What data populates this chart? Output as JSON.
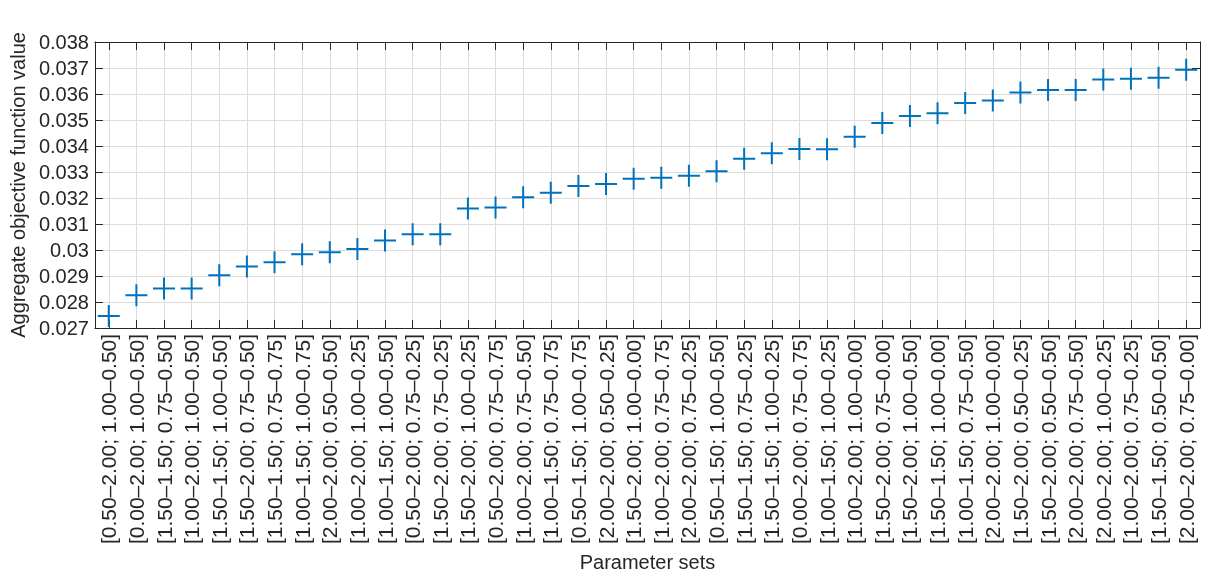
{
  "chart_data": {
    "type": "scatter",
    "xlabel": "Parameter sets",
    "ylabel": "Aggregate objective function value",
    "categories": [
      "[0.50–2.00; 1.00–0.50]",
      "[0.00–2.00; 1.00–0.50]",
      "[1.50–1.50; 0.75–0.50]",
      "[1.00–2.00; 1.00–0.50]",
      "[1.50–1.50; 1.00–0.50]",
      "[1.50–2.00; 0.75–0.50]",
      "[1.50–1.50; 0.75–0.75]",
      "[1.00–1.50; 1.00–0.75]",
      "[2.00–2.00; 0.50–0.50]",
      "[1.00–2.00; 1.00–0.25]",
      "[1.00–1.50; 1.00–0.50]",
      "[0.50–2.00; 0.75–0.25]",
      "[1.50–2.00; 0.75–0.25]",
      "[1.50–2.00; 1.00–0.25]",
      "[0.50–2.00; 0.75–0.75]",
      "[1.00–2.00; 0.75–0.50]",
      "[1.00–1.50; 0.75–0.75]",
      "[0.50–1.50; 1.00–0.75]",
      "[2.00–2.00; 0.50–0.25]",
      "[1.50–2.00; 1.00–0.00]",
      "[1.00–2.00; 0.75–0.75]",
      "[2.00–2.00; 0.75–0.25]",
      "[0.50–1.50; 1.00–0.50]",
      "[1.50–1.50; 0.75–0.25]",
      "[1.50–1.50; 1.00–0.25]",
      "[0.00–2.00; 0.75–0.75]",
      "[1.00–1.50; 1.00–0.25]",
      "[1.00–2.00; 1.00–0.00]",
      "[1.50–2.00; 0.75–0.00]",
      "[1.50–2.00; 1.00–0.50]",
      "[1.50–1.50; 1.00–0.00]",
      "[1.00–1.50; 0.75–0.50]",
      "[2.00–2.00; 1.00–0.00]",
      "[1.50–2.00; 0.50–0.25]",
      "[1.50–2.00; 0.50–0.50]",
      "[2.00–2.00; 0.75–0.50]",
      "[2.00–2.00; 1.00–0.25]",
      "[1.00–2.00; 0.75–0.25]",
      "[1.50–1.50; 0.50–0.50]",
      "[2.00–2.00; 0.75–0.00]"
    ],
    "values": [
      0.02746,
      0.02826,
      0.02852,
      0.02852,
      0.02903,
      0.02936,
      0.02953,
      0.02983,
      0.02991,
      0.03004,
      0.03036,
      0.0306,
      0.0306,
      0.03159,
      0.03163,
      0.03203,
      0.0322,
      0.03246,
      0.03254,
      0.03274,
      0.03278,
      0.03285,
      0.03303,
      0.03351,
      0.03372,
      0.03388,
      0.03387,
      0.03435,
      0.03488,
      0.03515,
      0.03526,
      0.03565,
      0.03575,
      0.03606,
      0.03615,
      0.03615,
      0.03656,
      0.03659,
      0.03662,
      0.03693
    ],
    "color": "#0072bd",
    "ylim": [
      0.027,
      0.038
    ],
    "yticks": [
      0.027,
      0.028,
      0.029,
      0.03,
      0.031,
      0.032,
      0.033,
      0.034,
      0.035,
      0.036,
      0.037,
      0.038
    ],
    "grid": true,
    "marker": "cross"
  }
}
